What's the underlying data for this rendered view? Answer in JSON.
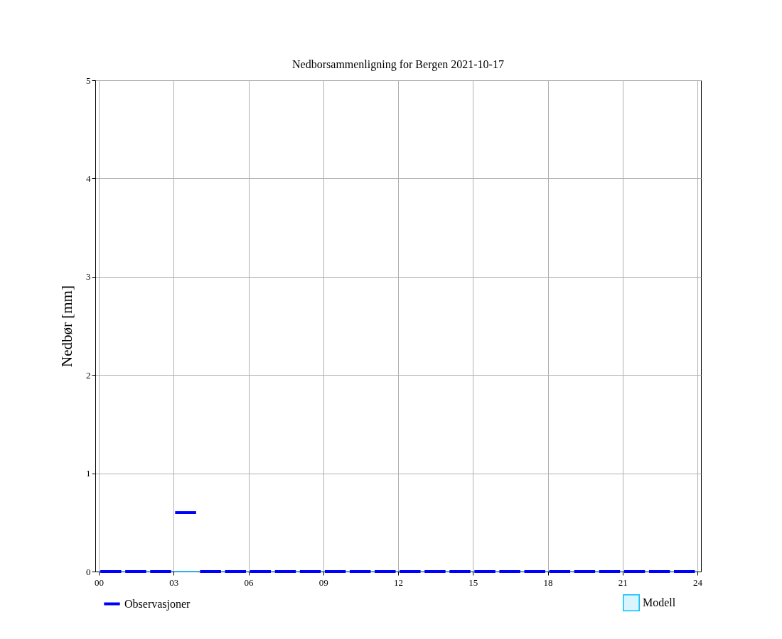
{
  "chart_data": {
    "type": "line",
    "title": "Nedborsammenligning for Bergen 2021-10-17",
    "ylabel": "Nedbør [mm]",
    "series": [
      {
        "name": "Observasjoner",
        "color": "#0000ff",
        "x": [
          0.06,
          0.9,
          0.95,
          1.06,
          1.9,
          1.95,
          2.06,
          2.9,
          2.95,
          3.06,
          3.9,
          3.95,
          4.06,
          4.9,
          4.95,
          5.06,
          5.9,
          5.95,
          6.06,
          6.9,
          6.95,
          7.06,
          7.9,
          7.95,
          8.06,
          8.9,
          8.95,
          9.06,
          9.9,
          9.95,
          10.06,
          10.9,
          10.95,
          11.06,
          11.9,
          11.95,
          12.06,
          12.9,
          12.95,
          13.06,
          13.9,
          13.95,
          14.06,
          14.9,
          14.95,
          15.06,
          15.9,
          15.95,
          16.06,
          16.9,
          16.95,
          17.06,
          17.9,
          17.95,
          18.06,
          18.9,
          18.95,
          19.06,
          19.9,
          19.95,
          20.06,
          20.9,
          20.95,
          21.06,
          21.9,
          21.95,
          22.06,
          22.9,
          22.95,
          23.06,
          23.9
        ],
        "values": [
          0,
          0,
          null,
          0,
          0,
          null,
          0,
          0,
          null,
          0.6,
          0.6,
          null,
          0,
          0,
          null,
          0,
          0,
          null,
          0,
          0,
          null,
          0,
          0,
          null,
          0,
          0,
          null,
          0,
          0,
          null,
          0,
          0,
          null,
          0,
          0,
          null,
          0,
          0,
          null,
          0,
          0,
          null,
          0,
          0,
          null,
          0,
          0,
          null,
          0,
          0,
          null,
          0,
          0,
          null,
          0,
          0,
          null,
          0,
          0,
          null,
          0,
          0,
          null,
          0,
          0,
          null,
          0,
          0,
          null,
          0,
          0
        ]
      },
      {
        "name": "Modell",
        "type": "bar",
        "color": "#00bfff",
        "x": [
          0.5,
          1.5,
          2.5,
          3.5,
          4.5,
          5.5,
          6.5,
          7.5,
          8.5,
          9.5,
          10.5,
          11.5,
          12.5,
          13.5,
          14.5,
          15.5,
          16.5,
          17.5,
          18.5,
          19.5,
          20.5,
          21.5,
          22.5,
          23.5
        ],
        "values": [
          0,
          0,
          0,
          0,
          0,
          0,
          0,
          0,
          0,
          0,
          0,
          0,
          0,
          0,
          0,
          0,
          0,
          0,
          0,
          0,
          0,
          0,
          0,
          0
        ]
      }
    ],
    "xlim": [
      0,
      24
    ],
    "xticks": [
      {
        "value": 0,
        "label": "00"
      },
      {
        "value": 3,
        "label": "03"
      },
      {
        "value": 6,
        "label": "06"
      },
      {
        "value": 9,
        "label": "09"
      },
      {
        "value": 12,
        "label": "12"
      },
      {
        "value": 15,
        "label": "15"
      },
      {
        "value": 18,
        "label": "18"
      },
      {
        "value": 21,
        "label": "21"
      },
      {
        "value": 24,
        "label": "24"
      }
    ],
    "ylim": [
      0,
      5
    ],
    "yticks": [
      0,
      1,
      2,
      3,
      4,
      5
    ],
    "grid": true,
    "legend": "bottom"
  }
}
